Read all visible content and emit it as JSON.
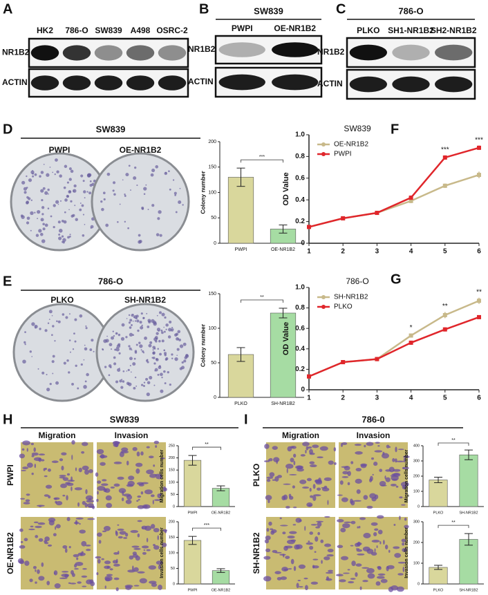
{
  "figure": {
    "panel_labels": [
      "A",
      "B",
      "C",
      "D",
      "E",
      "F",
      "G",
      "H",
      "I"
    ],
    "blots": [
      {
        "lanes": [
          "HK2",
          "786-O",
          "SW839",
          "A498",
          "OSRC-2"
        ],
        "rows": [
          "NR1B2",
          "ACTIN"
        ]
      },
      {
        "cell_line": "SW839",
        "lanes": [
          "PWPI",
          "OE-NR1B2"
        ],
        "rows": [
          "NR1B2",
          "ACTIN"
        ]
      },
      {
        "cell_line": "786-O",
        "lanes": [
          "PLKO",
          "SH1-NR1B2",
          "SH2-NR1B2"
        ],
        "rows": [
          "NR1B2",
          "ACTIN"
        ]
      }
    ],
    "colony": [
      {
        "cell_line": "SW839",
        "groups": [
          "PWPI",
          "OE-NR1B2"
        ]
      },
      {
        "cell_line": "786-O",
        "groups": [
          "PLKO",
          "SH-NR1B2"
        ]
      }
    ],
    "transwell": [
      {
        "cell_line": "SW839",
        "columns": [
          "Migration",
          "Invasion"
        ],
        "rows": [
          "PWPI",
          "OE-NR1B2"
        ]
      },
      {
        "cell_line": "786-0",
        "columns": [
          "Migration",
          "Invasion"
        ],
        "rows": [
          "PLKO",
          "SH-NR1B2"
        ]
      }
    ]
  },
  "chart_data": [
    {
      "type": "bar",
      "y_label": "Colony number",
      "categories": [
        "PWPI",
        "OE-NR1B2"
      ],
      "values": [
        130,
        28
      ],
      "errors": [
        18,
        8
      ],
      "colors": [
        "#d9d79c",
        "#a6dca3"
      ],
      "ylim": [
        0,
        200
      ],
      "yticks": [
        0,
        50,
        100,
        150,
        200
      ],
      "significance": "***"
    },
    {
      "type": "line",
      "title": "SW839",
      "y_label": "OD Value",
      "x": [
        1,
        2,
        3,
        4,
        5,
        6
      ],
      "xlim": [
        1,
        6
      ],
      "xticks": [
        1,
        2,
        3,
        4,
        5,
        6
      ],
      "ylim": [
        0,
        1
      ],
      "yticks": [
        0,
        0.2,
        0.4,
        0.6,
        0.8,
        {
          "value": 1,
          "label": "1.0"
        }
      ],
      "legend": "upper left",
      "series": [
        {
          "name": "OE-NR1B2",
          "color": "#c8b98a",
          "values": [
            0.15,
            0.23,
            0.28,
            0.39,
            0.53,
            0.63
          ],
          "errors": [
            0.01,
            0.01,
            0.01,
            0.02,
            0.02,
            0.03
          ]
        },
        {
          "name": "PWPI",
          "color": "#e0262b",
          "values": [
            0.15,
            0.23,
            0.28,
            0.42,
            0.79,
            0.88
          ],
          "errors": [
            0.01,
            0.01,
            0.01,
            0.02,
            0.02,
            0.02
          ]
        }
      ],
      "annotations": [
        {
          "x": 5,
          "text": "***"
        },
        {
          "x": 6,
          "text": "***"
        }
      ]
    },
    {
      "type": "bar",
      "y_label": "Colony number",
      "categories": [
        "PLKO",
        "SH-NR1B2"
      ],
      "values": [
        62,
        122
      ],
      "errors": [
        10,
        7
      ],
      "colors": [
        "#d9d79c",
        "#a6dca3"
      ],
      "ylim": [
        0,
        150
      ],
      "yticks": [
        0,
        50,
        100,
        150
      ],
      "significance": "**"
    },
    {
      "type": "line",
      "title": "786-O",
      "y_label": "OD Value",
      "x": [
        1,
        2,
        3,
        4,
        5,
        6
      ],
      "xlim": [
        1,
        6
      ],
      "xticks": [
        1,
        2,
        3,
        4,
        5,
        6
      ],
      "ylim": [
        0,
        1
      ],
      "yticks": [
        0,
        0.2,
        0.4,
        0.6,
        0.8,
        {
          "value": 1,
          "label": "1.0"
        }
      ],
      "legend": "upper left",
      "series": [
        {
          "name": "SH-NR1B2",
          "color": "#c8b98a",
          "values": [
            0.13,
            0.27,
            0.3,
            0.53,
            0.73,
            0.87
          ],
          "errors": [
            0.01,
            0.02,
            0.02,
            0.02,
            0.03,
            0.03
          ]
        },
        {
          "name": "PLKO",
          "color": "#e0262b",
          "values": [
            0.13,
            0.27,
            0.3,
            0.46,
            0.59,
            0.71
          ],
          "errors": [
            0.01,
            0.02,
            0.02,
            0.02,
            0.02,
            0.02
          ]
        }
      ],
      "annotations": [
        {
          "x": 4,
          "text": "*"
        },
        {
          "x": 5,
          "text": "**"
        },
        {
          "x": 6,
          "text": "**"
        }
      ]
    },
    {
      "type": "bar",
      "y_label": "Migration cells number",
      "categories": [
        "PWPI",
        "OE-NR1B2"
      ],
      "values": [
        190,
        75
      ],
      "errors": [
        20,
        10
      ],
      "colors": [
        "#d9d79c",
        "#a6dca3"
      ],
      "ylim": [
        0,
        250
      ],
      "yticks": [
        0,
        50,
        100,
        150,
        200,
        250
      ],
      "significance": "**"
    },
    {
      "type": "bar",
      "y_label": "Invasion cells number",
      "categories": [
        "PWPI",
        "OE-NR1B2"
      ],
      "values": [
        140,
        43
      ],
      "errors": [
        13,
        6
      ],
      "colors": [
        "#d9d79c",
        "#a6dca3"
      ],
      "ylim": [
        0,
        200
      ],
      "yticks": [
        0,
        50,
        100,
        150,
        200
      ],
      "significance": "***"
    },
    {
      "type": "bar",
      "y_label": "Migration cells number",
      "categories": [
        "PLKO",
        "SH-NR1B2"
      ],
      "values": [
        175,
        340
      ],
      "errors": [
        18,
        32
      ],
      "colors": [
        "#d9d79c",
        "#a6dca3"
      ],
      "ylim": [
        0,
        400
      ],
      "yticks": [
        0,
        100,
        200,
        300,
        400
      ],
      "significance": "**"
    },
    {
      "type": "bar",
      "y_label": "Invasion cells number",
      "categories": [
        "PLKO",
        "SH-NR1B2"
      ],
      "values": [
        80,
        215
      ],
      "errors": [
        10,
        28
      ],
      "colors": [
        "#d9d79c",
        "#a6dca3"
      ],
      "ylim": [
        0,
        300
      ],
      "yticks": [
        0,
        100,
        200,
        300
      ],
      "significance": "**"
    }
  ]
}
